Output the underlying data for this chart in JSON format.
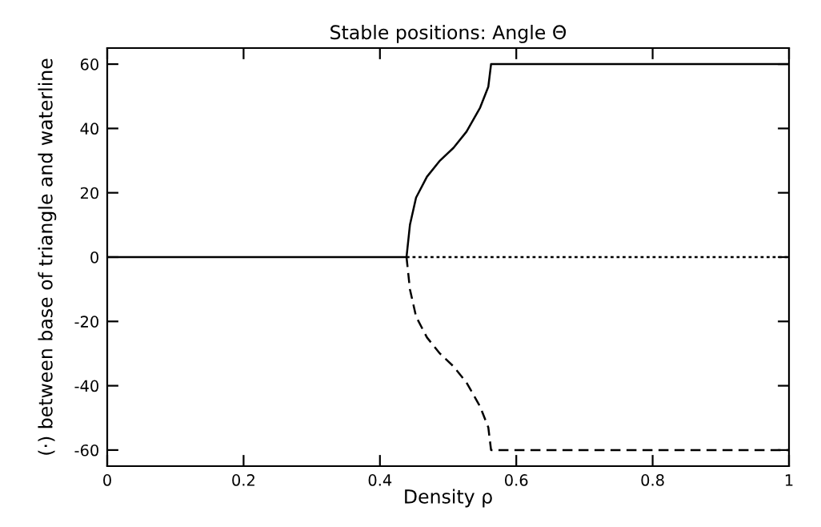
{
  "chart_data": {
    "type": "line",
    "title": "Stable positions: Angle Θ",
    "xlabel": "Density ρ",
    "ylabel": "(·) between base of triangle and waterline",
    "series": [
      {
        "color": "#000000",
        "line_style": "solid",
        "x": [
          0,
          0.439
        ],
        "values": [
          0,
          0
        ]
      },
      {
        "color": "#000000",
        "line_style": "solid",
        "x": [
          0.439,
          0.444,
          0.453,
          0.469,
          0.488,
          0.508,
          0.527,
          0.547,
          0.559,
          0.563,
          1
        ],
        "values": [
          0,
          10,
          18.5,
          25,
          30,
          34,
          39,
          46.5,
          53,
          60,
          60
        ]
      },
      {
        "color": "#000000",
        "line_style": "dotted",
        "x": [
          0.439,
          1
        ],
        "values": [
          0,
          0
        ]
      },
      {
        "color": "#000000",
        "line_style": "dashed",
        "x": [
          0.439,
          0.444,
          0.453,
          0.469,
          0.488,
          0.508,
          0.527,
          0.547,
          0.559,
          0.563,
          1
        ],
        "values": [
          0,
          -10,
          -18.5,
          -25,
          -30,
          -34,
          -39,
          -46.5,
          -53,
          -60,
          -60
        ]
      }
    ],
    "xlim": [
      0,
      1
    ],
    "ylim": [
      -65,
      65
    ],
    "xticks": [
      0,
      0.2,
      0.4,
      0.6,
      0.8,
      1
    ],
    "yticks": [
      -60,
      -40,
      -20,
      0,
      20,
      40,
      60
    ],
    "grid": false,
    "legend": false,
    "marker": "none"
  }
}
